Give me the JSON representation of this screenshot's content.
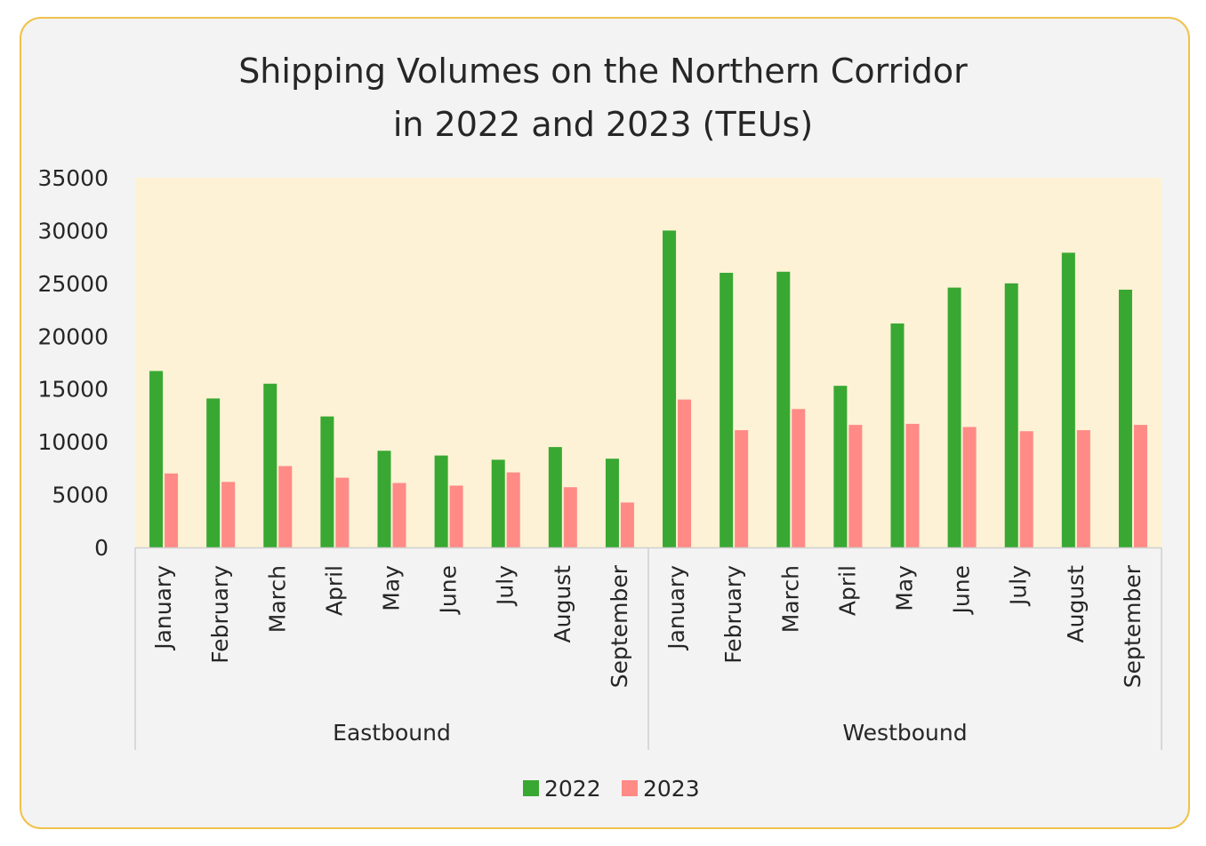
{
  "chart_data": {
    "type": "bar",
    "title_lines": [
      "Shipping Volumes on the Northern Corridor",
      "in 2022 and 2023 (TEUs)"
    ],
    "groups": [
      {
        "label": "Eastbound",
        "categories": [
          "January",
          "February",
          "March",
          "April",
          "May",
          "June",
          "July",
          "August",
          "September"
        ]
      },
      {
        "label": "Westbound",
        "categories": [
          "January",
          "February",
          "March",
          "April",
          "May",
          "June",
          "July",
          "August",
          "September"
        ]
      }
    ],
    "series": [
      {
        "name": "2022",
        "color": "#38a832",
        "values": [
          16700,
          14100,
          15500,
          12400,
          9150,
          8700,
          8300,
          9500,
          8400,
          30000,
          26000,
          26100,
          15300,
          21200,
          24600,
          25000,
          27900,
          24400
        ]
      },
      {
        "name": "2023",
        "color": "#ff8a86",
        "values": [
          7000,
          6200,
          7700,
          6600,
          6100,
          5850,
          7100,
          5700,
          4250,
          14000,
          11100,
          13100,
          11600,
          11700,
          11400,
          11000,
          11100,
          11600
        ]
      }
    ],
    "yticks": [
      0,
      5000,
      10000,
      15000,
      20000,
      25000,
      30000,
      35000
    ],
    "ylim": [
      0,
      35000
    ],
    "plot_background": "#fdf2d5",
    "legend_position": "bottom"
  }
}
